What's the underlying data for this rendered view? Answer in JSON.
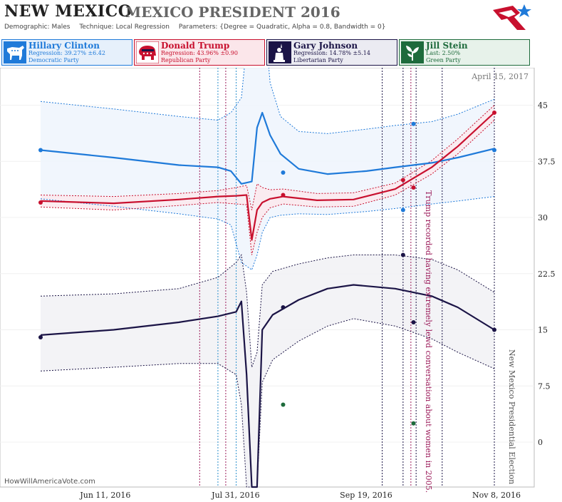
{
  "header": {
    "state": "NEW MEXICO",
    "race": "MEXICO PRESIDENT 2016",
    "demographic_label": "Demographic:",
    "demographic": "Males",
    "technique_label": "Technique:",
    "technique": "Local Regression",
    "parameters_label": "Parameters:",
    "parameters": "{Degree = Quadratic, Alpha = 0.8, Bandwidth = 0}"
  },
  "candidates": [
    {
      "name": "Hillary Clinton",
      "stat": "Regression: 39.27% ±6.42",
      "party": "Democratic Party",
      "color": "#1f7ad9",
      "bg": "#e6f0fb",
      "icon": "donkey-icon"
    },
    {
      "name": "Donald Trump",
      "stat": "Regression: 43.96% ±0.90",
      "party": "Republican Party",
      "color": "#c8102e",
      "bg": "#fbe6ea",
      "icon": "elephant-icon"
    },
    {
      "name": "Gary Johnson",
      "stat": "Regression: 14.78% ±5.14",
      "party": "Libertarian Party",
      "color": "#1b1446",
      "bg": "#ebebf2",
      "icon": "liberty-icon"
    },
    {
      "name": "Jill Stein",
      "stat": "Last: 2.50%",
      "party": "Green Party",
      "color": "#1e6b3c",
      "bg": "#e7f2ea",
      "icon": "leaf-icon"
    }
  ],
  "chart_data": {
    "type": "line",
    "x_ticks": [
      "Jun 11, 2016",
      "Jul 31, 2016",
      "Sep 19, 2016",
      "Nov 8, 2016"
    ],
    "y_ticks": [
      "45",
      "37.5",
      "30",
      "22.5",
      "15",
      "7.5",
      "0"
    ],
    "ylim": [
      -6,
      50
    ],
    "date_label": "April 15, 2017",
    "annotation_trump": "Trump recorded having extremely lewd conversation about women in 2005.",
    "annotation_election": "New Mexico Presidential Election",
    "credit": "HowWillAmericaVote.com",
    "series": [
      {
        "name": "Hillary Clinton",
        "color": "#1f7ad9",
        "x": [
          "2016-05-18",
          "2016-06-15",
          "2016-07-10",
          "2016-07-25",
          "2016-07-30",
          "2016-08-03",
          "2016-08-07",
          "2016-08-09",
          "2016-08-11",
          "2016-08-14",
          "2016-08-18",
          "2016-08-25",
          "2016-09-05",
          "2016-09-20",
          "2016-10-01",
          "2016-10-15",
          "2016-10-25",
          "2016-11-08"
        ],
        "values": [
          39,
          38,
          37,
          36.7,
          36.2,
          34.5,
          34.8,
          42,
          44,
          41,
          38.5,
          36.5,
          35.8,
          36.2,
          36.7,
          37.3,
          38,
          39.2
        ],
        "upper": [
          45.5,
          44.5,
          43.5,
          43,
          44,
          46,
          60,
          60,
          60,
          48,
          43.5,
          41.5,
          41.2,
          41.8,
          42.3,
          42.8,
          43.8,
          45.8
        ],
        "lower": [
          32.5,
          31.5,
          30.5,
          29.8,
          29,
          24,
          23,
          25,
          28,
          30,
          30.3,
          30.5,
          30.4,
          30.8,
          31.2,
          31.8,
          32.2,
          32.8
        ],
        "points": [
          {
            "date": "2016-05-18",
            "value": 39
          },
          {
            "date": "2016-08-19",
            "value": 36
          },
          {
            "date": "2016-10-04",
            "value": 31
          },
          {
            "date": "2016-10-08",
            "value": 42.5
          },
          {
            "date": "2016-11-08",
            "value": 39
          }
        ]
      },
      {
        "name": "Donald Trump",
        "color": "#c8102e",
        "x": [
          "2016-05-18",
          "2016-06-15",
          "2016-07-10",
          "2016-07-25",
          "2016-08-01",
          "2016-08-05",
          "2016-08-07",
          "2016-08-09",
          "2016-08-11",
          "2016-08-14",
          "2016-08-19",
          "2016-09-01",
          "2016-09-15",
          "2016-10-01",
          "2016-10-15",
          "2016-10-25",
          "2016-11-08"
        ],
        "values": [
          32.2,
          31.9,
          32.4,
          32.8,
          32.9,
          33,
          27,
          31,
          32,
          32.5,
          32.8,
          32.3,
          32.4,
          33.8,
          36.7,
          39.5,
          44
        ],
        "upper": [
          33,
          32.8,
          33.2,
          33.6,
          34,
          34.3,
          31,
          34.5,
          34,
          33.7,
          33.8,
          33.2,
          33.3,
          34.6,
          37.6,
          40.5,
          45
        ],
        "lower": [
          31.4,
          31,
          31.6,
          32,
          31.8,
          31.7,
          25,
          28,
          30,
          31.3,
          31.8,
          31.4,
          31.5,
          33,
          35.8,
          38.5,
          43
        ],
        "points": [
          {
            "date": "2016-05-18",
            "value": 32
          },
          {
            "date": "2016-08-19",
            "value": 33
          },
          {
            "date": "2016-10-04",
            "value": 35
          },
          {
            "date": "2016-10-08",
            "value": 34
          },
          {
            "date": "2016-11-08",
            "value": 44
          }
        ]
      },
      {
        "name": "Gary Johnson",
        "color": "#1b1446",
        "x": [
          "2016-05-18",
          "2016-06-15",
          "2016-07-10",
          "2016-07-25",
          "2016-08-01",
          "2016-08-03",
          "2016-08-05",
          "2016-08-07",
          "2016-08-09",
          "2016-08-11",
          "2016-08-15",
          "2016-08-25",
          "2016-09-05",
          "2016-09-15",
          "2016-10-01",
          "2016-10-15",
          "2016-10-25",
          "2016-11-08"
        ],
        "values": [
          14.3,
          15,
          16,
          16.8,
          17.4,
          18.8,
          9,
          -6,
          -6,
          15,
          17,
          19,
          20.5,
          21,
          20.5,
          19.5,
          18,
          15
        ],
        "upper": [
          19.5,
          19.8,
          20.5,
          22,
          24,
          25,
          20,
          10,
          12,
          21,
          22.8,
          23.8,
          24.6,
          25,
          25,
          24.4,
          23,
          20
        ],
        "lower": [
          9.5,
          10,
          10.5,
          10.5,
          9,
          5,
          -6,
          -6,
          -6,
          8,
          11,
          13.5,
          15.5,
          16.5,
          15.5,
          13.8,
          12,
          9.8
        ],
        "points": [
          {
            "date": "2016-05-18",
            "value": 14
          },
          {
            "date": "2016-08-19",
            "value": 18
          },
          {
            "date": "2016-10-04",
            "value": 25
          },
          {
            "date": "2016-10-08",
            "value": 16
          },
          {
            "date": "2016-11-08",
            "value": 15
          }
        ]
      },
      {
        "name": "Jill Stein",
        "color": "#1e6b3c",
        "x": [],
        "values": [],
        "points": [
          {
            "date": "2016-08-19",
            "value": 5
          },
          {
            "date": "2016-10-08",
            "value": 2.5
          }
        ]
      }
    ],
    "event_lines": [
      {
        "date": "2016-07-18",
        "color": "#9b1b5a"
      },
      {
        "date": "2016-07-25",
        "color": "#2a8fcc"
      },
      {
        "date": "2016-07-28",
        "color": "#9b1b5a"
      },
      {
        "date": "2016-08-01",
        "color": "#2a8fcc"
      },
      {
        "date": "2016-09-26",
        "color": "#1b1446"
      },
      {
        "date": "2016-10-04",
        "color": "#1b1446"
      },
      {
        "date": "2016-10-07",
        "color": "#9b1b5a"
      },
      {
        "date": "2016-10-09",
        "color": "#1b1446"
      },
      {
        "date": "2016-10-19",
        "color": "#1b1446"
      },
      {
        "date": "2016-11-08",
        "color": "#1b1446"
      }
    ]
  }
}
